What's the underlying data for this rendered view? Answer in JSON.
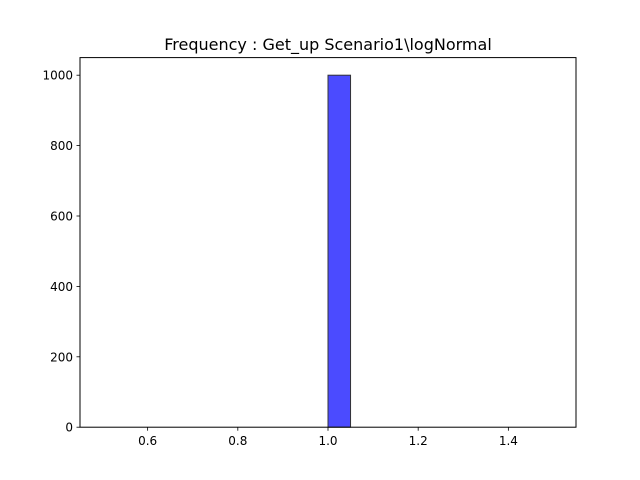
{
  "chart_data": {
    "type": "bar",
    "title": "Frequency : Get_up Scenario1\\logNormal",
    "xlabel": "",
    "ylabel": "",
    "xlim": [
      0.45,
      1.55
    ],
    "ylim": [
      0,
      1050
    ],
    "x_ticks": [
      0.6,
      0.8,
      1.0,
      1.2,
      1.4
    ],
    "x_tick_labels": [
      "0.6",
      "0.8",
      "1.0",
      "1.2",
      "1.4"
    ],
    "y_ticks": [
      0,
      200,
      400,
      600,
      800,
      1000
    ],
    "y_tick_labels": [
      "0",
      "200",
      "400",
      "600",
      "800",
      "1000"
    ],
    "bins": [
      {
        "x0": 0.5,
        "x1": 0.55,
        "count": 0
      },
      {
        "x0": 0.55,
        "x1": 0.6,
        "count": 0
      },
      {
        "x0": 0.6,
        "x1": 0.65,
        "count": 0
      },
      {
        "x0": 0.65,
        "x1": 0.7,
        "count": 0
      },
      {
        "x0": 0.7,
        "x1": 0.75,
        "count": 0
      },
      {
        "x0": 0.75,
        "x1": 0.8,
        "count": 0
      },
      {
        "x0": 0.8,
        "x1": 0.85,
        "count": 0
      },
      {
        "x0": 0.85,
        "x1": 0.9,
        "count": 0
      },
      {
        "x0": 0.9,
        "x1": 0.95,
        "count": 0
      },
      {
        "x0": 0.95,
        "x1": 1.0,
        "count": 0
      },
      {
        "x0": 1.0,
        "x1": 1.05,
        "count": 1000
      },
      {
        "x0": 1.05,
        "x1": 1.1,
        "count": 0
      },
      {
        "x0": 1.1,
        "x1": 1.15,
        "count": 0
      },
      {
        "x0": 1.15,
        "x1": 1.2,
        "count": 0
      },
      {
        "x0": 1.2,
        "x1": 1.25,
        "count": 0
      },
      {
        "x0": 1.25,
        "x1": 1.3,
        "count": 0
      },
      {
        "x0": 1.3,
        "x1": 1.35,
        "count": 0
      },
      {
        "x0": 1.35,
        "x1": 1.4,
        "count": 0
      },
      {
        "x0": 1.4,
        "x1": 1.45,
        "count": 0
      },
      {
        "x0": 1.45,
        "x1": 1.5,
        "count": 0
      }
    ],
    "bar_color": "#4b4bff",
    "bar_edge_color": "#333333",
    "grid": false,
    "legend": "none"
  }
}
